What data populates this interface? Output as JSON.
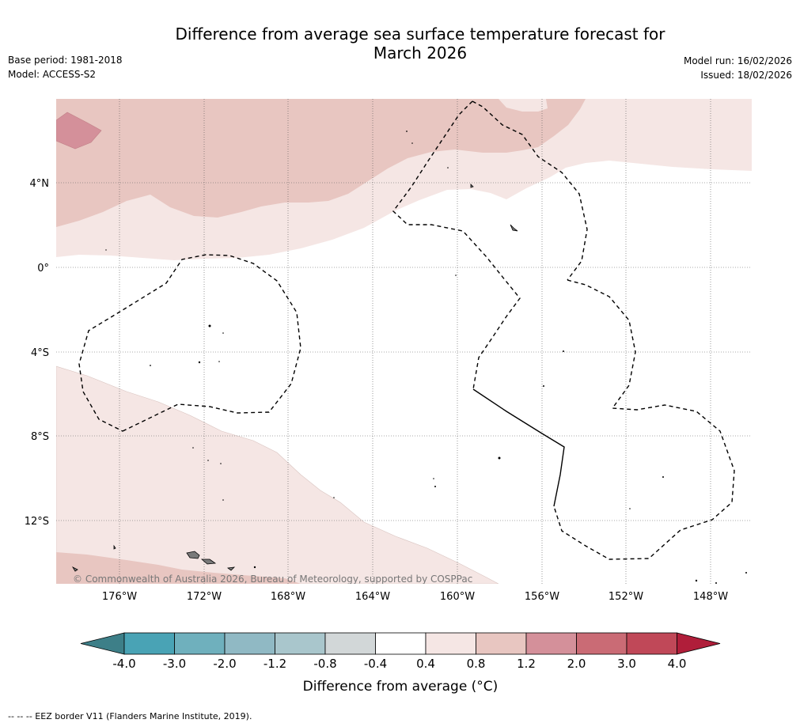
{
  "header": {
    "title_line1": "Difference from average sea surface temperature forecast for",
    "title_line2": "March 2026",
    "base_period": "Base period: 1981-2018",
    "model": "Model: ACCESS-S2",
    "model_run": "Model run: 16/02/2026",
    "issued": "Issued: 18/02/2026"
  },
  "map": {
    "lat_labels": [
      "4°N",
      "0°",
      "4°S",
      "8°S",
      "12°S"
    ],
    "lon_labels": [
      "176°W",
      "172°W",
      "168°W",
      "164°W",
      "160°W",
      "156°W",
      "152°W",
      "148°W"
    ],
    "copyright": "© Commonwealth of Australia 2026, Bureau of Meteorology, supported by COSPPac"
  },
  "colorbar": {
    "title": "Difference from average (°C)",
    "labels": [
      "-4.0",
      "-3.0",
      "-2.0",
      "-1.2",
      "-0.8",
      "-0.4",
      "0.4",
      "0.8",
      "1.2",
      "2.0",
      "3.0",
      "4.0"
    ],
    "colors": [
      "#3d7f88",
      "#49a3b5",
      "#6fb0bd",
      "#90b9c4",
      "#a9c6cc",
      "#d2d7d8",
      "#ffffff",
      "#f5e6e4",
      "#e8c6c1",
      "#d4909a",
      "#ca6b75",
      "#c04858",
      "#b01e3a"
    ]
  },
  "footer": {
    "eez_note": "--  --  -- EEZ border V11 (Flanders Marine Institute, 2019)."
  }
}
